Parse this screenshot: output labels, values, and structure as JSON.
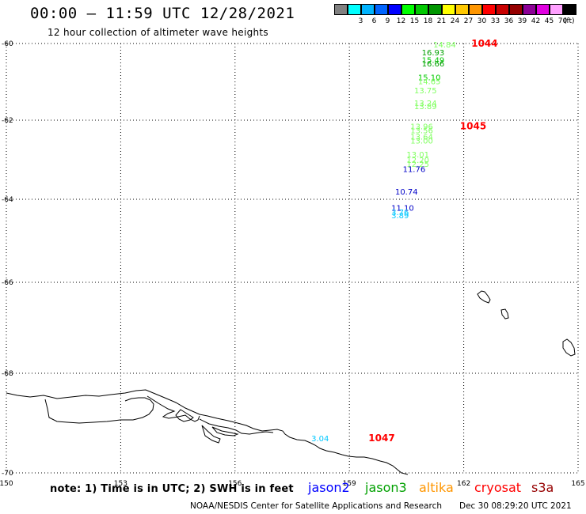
{
  "header": {
    "title": "00:00 – 11:59 UTC 12/28/2021",
    "subtitle": "12 hour collection of altimeter wave heights"
  },
  "legend": {
    "swatches": [
      {
        "label": "",
        "color": "#808080"
      },
      {
        "label": "3",
        "color": "#00ffff"
      },
      {
        "label": "6",
        "color": "#00b4ff"
      },
      {
        "label": "9",
        "color": "#0064ff"
      },
      {
        "label": "12",
        "color": "#0000ff"
      },
      {
        "label": "15",
        "color": "#00ff00"
      },
      {
        "label": "18",
        "color": "#00c800"
      },
      {
        "label": "21",
        "color": "#009600"
      },
      {
        "label": "24",
        "color": "#ffff00"
      },
      {
        "label": "27",
        "color": "#ffc800"
      },
      {
        "label": "30",
        "color": "#ff9600"
      },
      {
        "label": "33",
        "color": "#ff0000"
      },
      {
        "label": "36",
        "color": "#c80000"
      },
      {
        "label": "39",
        "color": "#960000"
      },
      {
        "label": "42",
        "color": "#8c0096"
      },
      {
        "label": "45",
        "color": "#e000e0"
      },
      {
        "label": "70",
        "color": "#ffa0ff"
      },
      {
        "label": "(ft)",
        "color": "#000000"
      }
    ]
  },
  "map": {
    "lon_range": [
      150,
      165
    ],
    "lat_range": [
      -60,
      -70
    ],
    "lat_ticks": [
      {
        "value": -60,
        "label": "-60"
      },
      {
        "value": -62,
        "label": "-62"
      },
      {
        "value": -64,
        "label": "-64"
      },
      {
        "value": -66,
        "label": "-66"
      },
      {
        "value": -68,
        "label": "-68"
      },
      {
        "value": -70,
        "label": "-70"
      }
    ],
    "lon_ticks": [
      {
        "value": 150,
        "label": "150"
      },
      {
        "value": 153,
        "label": "153"
      },
      {
        "value": 156,
        "label": "156"
      },
      {
        "value": 159,
        "label": "159"
      },
      {
        "value": 162,
        "label": "162"
      },
      {
        "value": 165,
        "label": "165"
      }
    ],
    "wave_heights": [
      {
        "lon": 161.2,
        "lat": -60.02,
        "value": "14.84",
        "color": "#80ff60"
      },
      {
        "lon": 160.9,
        "lat": -60.23,
        "value": "16.93",
        "color": "#00a000"
      },
      {
        "lon": 160.9,
        "lat": -60.42,
        "value": "15.49",
        "color": "#00c800"
      },
      {
        "lon": 160.9,
        "lat": -60.52,
        "value": "16.66",
        "color": "#00a000"
      },
      {
        "lon": 160.8,
        "lat": -60.88,
        "value": "15.10",
        "color": "#00c800"
      },
      {
        "lon": 160.8,
        "lat": -60.98,
        "value": "14.65",
        "color": "#80ff60"
      },
      {
        "lon": 160.7,
        "lat": -61.22,
        "value": "13.75",
        "color": "#80ff60"
      },
      {
        "lon": 160.7,
        "lat": -61.55,
        "value": "13.24",
        "color": "#80ff60"
      },
      {
        "lon": 160.7,
        "lat": -61.63,
        "value": "13.89",
        "color": "#80ff60"
      },
      {
        "lon": 160.6,
        "lat": -62.15,
        "value": "13.96",
        "color": "#80ff60"
      },
      {
        "lon": 160.6,
        "lat": -62.25,
        "value": "13.56",
        "color": "#80ff60"
      },
      {
        "lon": 160.6,
        "lat": -62.41,
        "value": "13.64",
        "color": "#80ff60"
      },
      {
        "lon": 160.6,
        "lat": -62.51,
        "value": "13.00",
        "color": "#80ff60"
      },
      {
        "lon": 160.5,
        "lat": -62.86,
        "value": "13.01",
        "color": "#80ff60"
      },
      {
        "lon": 160.5,
        "lat": -63.0,
        "value": "12.20",
        "color": "#80ff60"
      },
      {
        "lon": 160.5,
        "lat": -63.1,
        "value": "12.25",
        "color": "#80ff60"
      },
      {
        "lon": 160.4,
        "lat": -63.23,
        "value": "11.76",
        "color": "#0000c8"
      },
      {
        "lon": 160.2,
        "lat": -63.8,
        "value": "10.74",
        "color": "#0000c8"
      },
      {
        "lon": 160.1,
        "lat": -64.2,
        "value": "11.10",
        "color": "#0000c8"
      },
      {
        "lon": 160.1,
        "lat": -64.3,
        "value": "3.76",
        "color": "#00c8ff"
      },
      {
        "lon": 160.1,
        "lat": -64.38,
        "value": "3.89",
        "color": "#00c8ff"
      },
      {
        "lon": 158.0,
        "lat": -69.3,
        "value": "3.04",
        "color": "#00c8ff"
      }
    ],
    "pass_labels": [
      {
        "lon": 162.2,
        "lat": -60.0,
        "text": "1044",
        "color": "#ff0000"
      },
      {
        "lon": 161.9,
        "lat": -62.15,
        "text": "1045",
        "color": "#ff0000"
      },
      {
        "lon": 159.5,
        "lat": -69.3,
        "text": "1047",
        "color": "#ff0000"
      }
    ]
  },
  "footer": {
    "note": "note:  1) Time is in UTC;  2) SWH is in feet",
    "satellites": [
      {
        "name": "jason2",
        "color": "#0000ff"
      },
      {
        "name": "jason3",
        "color": "#00a000"
      },
      {
        "name": "altika",
        "color": "#ff9600"
      },
      {
        "name": "cryosat",
        "color": "#ff0000"
      },
      {
        "name": "s3a",
        "color": "#960000"
      }
    ],
    "credit": "NOAA/NESDIS Center for Satellite Applications and Research",
    "timestamp": "Dec 30 08:29:20 UTC 2021"
  }
}
